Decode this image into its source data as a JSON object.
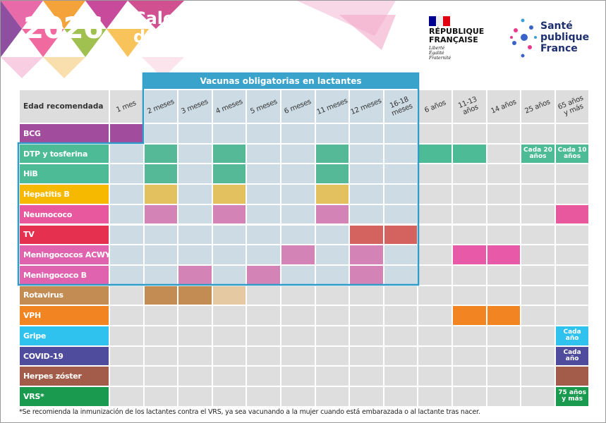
{
  "header": {
    "year": "2026",
    "title_lines": [
      "Calendario resumido",
      "de vacunación"
    ]
  },
  "logos": {
    "republique": {
      "name_lines": [
        "RÉPUBLIQUE",
        "FRANÇAISE"
      ],
      "motto_lines": [
        "Liberté",
        "Égalité",
        "Fraternité"
      ]
    },
    "spf": {
      "name_lines": [
        "Santé",
        "publique",
        "France"
      ]
    }
  },
  "table": {
    "mandatory_label": "Vacunas obligatorias en lactantes",
    "age_header": "Edad recomendada",
    "ages": [
      "1 mes",
      "2 meses",
      "3 meses",
      "4 meses",
      "5 meses",
      "6 meses",
      "11 meses",
      "12 meses",
      "16-18 meses",
      "6 años",
      "11-13 años",
      "14 años",
      "25 años",
      "65 años y más"
    ],
    "rows": [
      {
        "name": "BCG",
        "color": "#a24c9e",
        "cells": [
          {
            "color": "#a24c9e"
          },
          null,
          null,
          null,
          null,
          null,
          null,
          null,
          null,
          null,
          null,
          null,
          null,
          null
        ]
      },
      {
        "name": "DTP y tosferina",
        "color": "#4dbb96",
        "cells": [
          null,
          {
            "color": "#55b998"
          },
          null,
          {
            "color": "#55b998"
          },
          null,
          null,
          {
            "color": "#55b998"
          },
          null,
          null,
          {
            "color": "#4dbb96"
          },
          {
            "color": "#4dbb96"
          },
          null,
          {
            "color": "#4dbb96",
            "label": "Cada 20 años"
          },
          {
            "color": "#4dbb96",
            "label": "Cada 10 años"
          }
        ]
      },
      {
        "name": "HiB",
        "color": "#4dbb96",
        "cells": [
          null,
          {
            "color": "#55b998"
          },
          null,
          {
            "color": "#55b998"
          },
          null,
          null,
          {
            "color": "#55b998"
          },
          null,
          null,
          null,
          null,
          null,
          null,
          null
        ]
      },
      {
        "name": "Hepatitis B",
        "color": "#f7b900",
        "cells": [
          null,
          {
            "color": "#e2c15e"
          },
          null,
          {
            "color": "#e2c15e"
          },
          null,
          null,
          {
            "color": "#e2c15e"
          },
          null,
          null,
          null,
          null,
          null,
          null,
          null
        ]
      },
      {
        "name": "Neumococo",
        "color": "#e8589e",
        "cells": [
          null,
          {
            "color": "#d483b7"
          },
          null,
          {
            "color": "#d483b7"
          },
          null,
          null,
          {
            "color": "#d483b7"
          },
          null,
          null,
          null,
          null,
          null,
          null,
          {
            "color": "#e8589e"
          }
        ]
      },
      {
        "name": "TV",
        "color": "#e5304f",
        "cells": [
          null,
          null,
          null,
          null,
          null,
          null,
          null,
          {
            "color": "#d4625f"
          },
          {
            "color": "#d4625f"
          },
          null,
          null,
          null,
          null,
          null
        ]
      },
      {
        "name": "Meningococos ACWY",
        "color": "#e063b0",
        "cells": [
          null,
          null,
          null,
          null,
          null,
          {
            "color": "#d483b7"
          },
          null,
          {
            "color": "#d483b7"
          },
          null,
          null,
          {
            "color": "#e85aa8"
          },
          {
            "color": "#e85aa8"
          },
          null,
          null
        ]
      },
      {
        "name": "Meningococo B",
        "color": "#e063b0",
        "cells": [
          null,
          null,
          {
            "color": "#d483b7"
          },
          null,
          {
            "color": "#d483b7"
          },
          null,
          null,
          {
            "color": "#d483b7"
          },
          null,
          null,
          null,
          null,
          null,
          null
        ]
      },
      {
        "name": "Rotavirus",
        "color": "#c38c52",
        "cells": [
          null,
          {
            "color": "#c38c52"
          },
          {
            "color": "#c38c52"
          },
          {
            "color": "#e4c9a2"
          },
          null,
          null,
          null,
          null,
          null,
          null,
          null,
          null,
          null,
          null
        ]
      },
      {
        "name": "VPH",
        "color": "#f28421",
        "cells": [
          null,
          null,
          null,
          null,
          null,
          null,
          null,
          null,
          null,
          null,
          {
            "color": "#f28421"
          },
          {
            "color": "#f28421"
          },
          null,
          null
        ]
      },
      {
        "name": "Gripe",
        "color": "#2fc2ef",
        "cells": [
          null,
          null,
          null,
          null,
          null,
          null,
          null,
          null,
          null,
          null,
          null,
          null,
          null,
          {
            "color": "#2fc2ef",
            "label": "Cada año"
          }
        ]
      },
      {
        "name": "COVID-19",
        "color": "#4f4c9e",
        "cells": [
          null,
          null,
          null,
          null,
          null,
          null,
          null,
          null,
          null,
          null,
          null,
          null,
          null,
          {
            "color": "#4f4c9e",
            "label": "Cada año"
          }
        ]
      },
      {
        "name": "Herpes zóster",
        "color": "#a25c49",
        "cells": [
          null,
          null,
          null,
          null,
          null,
          null,
          null,
          null,
          null,
          null,
          null,
          null,
          null,
          {
            "color": "#a25c49"
          }
        ]
      },
      {
        "name": "VRS*",
        "color": "#1a9a4e",
        "cells": [
          null,
          null,
          null,
          null,
          null,
          null,
          null,
          null,
          null,
          null,
          null,
          null,
          null,
          {
            "color": "#1a9a4e",
            "label": "75 años y más"
          }
        ]
      }
    ]
  },
  "footnote": "*Se recomienda la inmunización de los lactantes contra el VRS, ya sea vacunando a la mujer cuando está embarazada o al lactante tras nacer."
}
